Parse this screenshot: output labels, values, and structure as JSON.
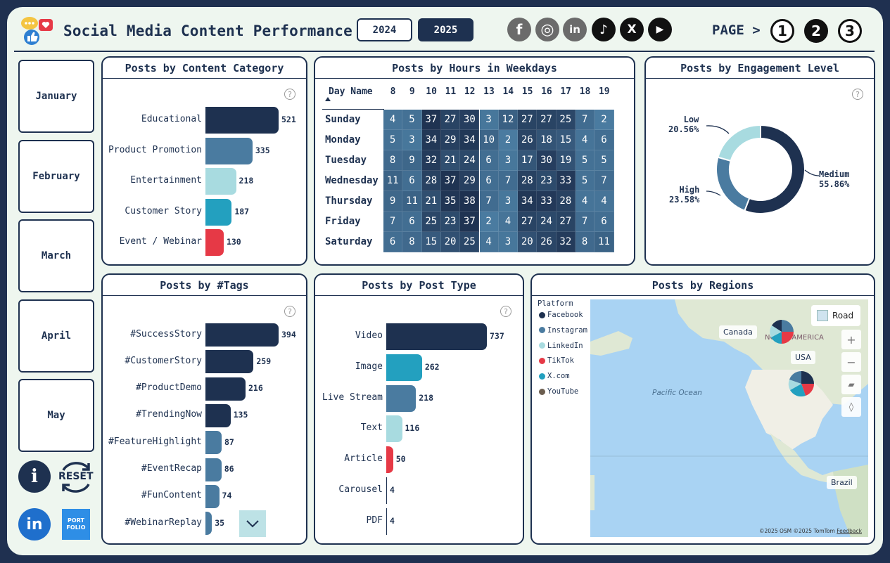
{
  "header": {
    "title": "Social Media Content Performance",
    "years": [
      {
        "label": "2024",
        "active": false
      },
      {
        "label": "2025",
        "active": true
      }
    ],
    "socials": [
      {
        "name": "facebook-icon",
        "glyph": "f",
        "color": "#6b6b6b"
      },
      {
        "name": "instagram-icon",
        "glyph": "◎",
        "color": "#6b6b6b"
      },
      {
        "name": "linkedin-icon",
        "glyph": "in",
        "color": "#6b6b6b"
      },
      {
        "name": "tiktok-icon",
        "glyph": "♪",
        "color": "#111111"
      },
      {
        "name": "x-icon",
        "glyph": "X",
        "color": "#111111"
      },
      {
        "name": "youtube-icon",
        "glyph": "▶",
        "color": "#111111"
      }
    ],
    "page_label": "PAGE >",
    "pages": [
      {
        "label": "1",
        "active": false
      },
      {
        "label": "2",
        "active": true
      },
      {
        "label": "3",
        "active": false
      }
    ]
  },
  "months": [
    "January",
    "February",
    "March",
    "April",
    "May"
  ],
  "sidebar": {
    "info_icon": "i",
    "reset_label": "RESET",
    "linkedin": "in",
    "portfolio_line1": "PORT",
    "portfolio_line2": "FOLIO"
  },
  "colors": {
    "navy": "#1e3150",
    "steel": "#4a7ba0",
    "light": "#a8dbe0",
    "teal": "#23a0bf",
    "red": "#e63946"
  },
  "content_category": {
    "title": "Posts by Content Category",
    "chart_data": {
      "type": "bar",
      "categories": [
        "Educational",
        "Product Promotion",
        "Entertainment",
        "Customer Story",
        "Event / Webinar"
      ],
      "values": [
        521,
        335,
        218,
        187,
        130
      ],
      "colors": [
        "#1e3150",
        "#4a7ba0",
        "#a8dbe0",
        "#23a0bf",
        "#e63946"
      ]
    }
  },
  "heatmap": {
    "title": "Posts by Hours in Weekdays",
    "corner_label": "Day Name",
    "chart_data": {
      "type": "heatmap",
      "hours": [
        "8",
        "9",
        "10",
        "11",
        "12",
        "13",
        "14",
        "15",
        "16",
        "17",
        "18",
        "19"
      ],
      "days": [
        "Sunday",
        "Monday",
        "Tuesday",
        "Wednesday",
        "Thursday",
        "Friday",
        "Saturday"
      ],
      "values": [
        [
          4,
          5,
          37,
          27,
          30,
          3,
          12,
          27,
          27,
          25,
          7,
          2
        ],
        [
          5,
          3,
          34,
          29,
          34,
          10,
          2,
          26,
          18,
          15,
          4,
          6
        ],
        [
          8,
          9,
          32,
          21,
          24,
          6,
          3,
          17,
          30,
          19,
          5,
          5
        ],
        [
          11,
          6,
          28,
          37,
          29,
          6,
          7,
          28,
          23,
          33,
          5,
          7
        ],
        [
          9,
          11,
          21,
          35,
          38,
          7,
          3,
          34,
          33,
          28,
          4,
          4
        ],
        [
          7,
          6,
          25,
          23,
          37,
          2,
          4,
          27,
          24,
          27,
          7,
          6
        ],
        [
          6,
          8,
          15,
          20,
          25,
          4,
          3,
          20,
          26,
          32,
          8,
          11
        ]
      ]
    }
  },
  "engagement": {
    "title": "Posts by Engagement Level",
    "chart_data": {
      "type": "pie",
      "labels": [
        "Medium",
        "High",
        "Low"
      ],
      "values": [
        55.86,
        23.58,
        20.56
      ],
      "display": [
        "55.86%",
        "23.58%",
        "20.56%"
      ],
      "colors": [
        "#1e3150",
        "#4a7ba0",
        "#a8dbe0"
      ]
    }
  },
  "tags": {
    "title": "Posts by #Tags",
    "chart_data": {
      "type": "bar",
      "categories": [
        "#SuccessStory",
        "#CustomerStory",
        "#ProductDemo",
        "#TrendingNow",
        "#FeatureHighlight",
        "#EventRecap",
        "#FunContent",
        "#WebinarReplay"
      ],
      "values": [
        394,
        259,
        216,
        135,
        87,
        86,
        74,
        35
      ],
      "colors": [
        "#1e3150",
        "#1e3150",
        "#1e3150",
        "#1e3150",
        "#4a7ba0",
        "#4a7ba0",
        "#4a7ba0",
        "#4a7ba0"
      ]
    }
  },
  "post_type": {
    "title": "Posts by Post Type",
    "chart_data": {
      "type": "bar",
      "categories": [
        "Video",
        "Image",
        "Live Stream",
        "Text",
        "Article",
        "Carousel",
        "PDF"
      ],
      "values": [
        737,
        262,
        218,
        116,
        50,
        4,
        4
      ],
      "colors": [
        "#1e3150",
        "#23a0bf",
        "#4a7ba0",
        "#a8dbe0",
        "#e63946",
        "#1e3150",
        "#1e3150"
      ]
    }
  },
  "regions": {
    "title": "Posts by Regions",
    "legend_title": "Platform",
    "legend": [
      {
        "label": "Facebook",
        "color": "#1e3150"
      },
      {
        "label": "Instagram",
        "color": "#4a7ba0"
      },
      {
        "label": "LinkedIn",
        "color": "#a8dbe0"
      },
      {
        "label": "TikTok",
        "color": "#e63946"
      },
      {
        "label": "X.com",
        "color": "#23a0bf"
      },
      {
        "label": "YouTube",
        "color": "#6b5d4f"
      }
    ],
    "map": {
      "road_label": "Road",
      "labels": {
        "canada": "Canada",
        "usa": "USA",
        "north_america": "NORTH AMERICA",
        "pacific": "Pacific Ocean",
        "brazil": "Brazil"
      },
      "attribution": "©2025 OSM  ©2025 TomTom",
      "feedback": "Feedback"
    }
  }
}
